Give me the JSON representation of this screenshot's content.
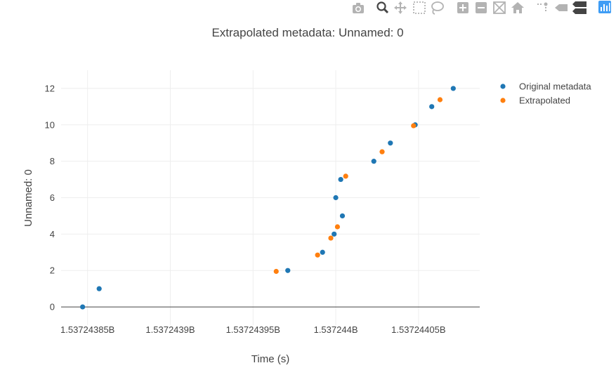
{
  "toolbar": {
    "buttons": [
      {
        "name": "camera-icon",
        "color": "#b3b3b3"
      },
      {
        "name": "zoom-icon",
        "color": "#444444"
      },
      {
        "name": "pan-icon",
        "color": "#b3b3b3"
      },
      {
        "name": "box-select-icon",
        "color": "#b3b3b3"
      },
      {
        "name": "lasso-select-icon",
        "color": "#b3b3b3"
      },
      {
        "name": "zoom-in-icon",
        "color": "#b3b3b3"
      },
      {
        "name": "zoom-out-icon",
        "color": "#b3b3b3"
      },
      {
        "name": "autoscale-icon",
        "color": "#b3b3b3"
      },
      {
        "name": "home-icon",
        "color": "#b3b3b3"
      },
      {
        "name": "spike-lines-icon",
        "color": "#b3b3b3"
      },
      {
        "name": "hover-closest-icon",
        "color": "#b3b3b3"
      },
      {
        "name": "hover-compare-icon",
        "color": "#444444"
      },
      {
        "name": "plotly-logo-icon",
        "color": "#3f9df5"
      }
    ]
  },
  "chart_data": {
    "type": "scatter",
    "title": "Extrapolated metadata: Unnamed: 0",
    "xlabel": "Time (s)",
    "ylabel": "Unnamed: 0",
    "xlim": [
      1537243834,
      1537244087
    ],
    "ylim": [
      -1,
      13
    ],
    "xticks": [
      1537243850,
      1537243900,
      1537243950,
      1537244000,
      1537244050
    ],
    "xtick_labels": [
      "1.53724385B",
      "1.5372439B",
      "1.53724395B",
      "1.537244B",
      "1.53724405B"
    ],
    "yticks": [
      0,
      2,
      4,
      6,
      8,
      10,
      12
    ],
    "grid": true,
    "legend_position": "top-right",
    "series": [
      {
        "name": "Original metadata",
        "color": "#1f77b4",
        "x": [
          1537243847,
          1537243857,
          1537243971,
          1537243992,
          1537243999,
          1537244004,
          1537244000,
          1537244003,
          1537244023,
          1537244033,
          1537244048,
          1537244058,
          1537244071
        ],
        "y": [
          0,
          1,
          2,
          3,
          4,
          5,
          6,
          7,
          8,
          9,
          10,
          11,
          12
        ]
      },
      {
        "name": "Extrapolated",
        "color": "#ff7f0e",
        "x": [
          1537243964,
          1537243989,
          1537243997,
          1537244001,
          1537244006,
          1537244028,
          1537244047,
          1537244063
        ],
        "y": [
          1.95,
          2.85,
          3.78,
          4.4,
          7.18,
          8.52,
          9.95,
          11.38
        ]
      }
    ]
  }
}
